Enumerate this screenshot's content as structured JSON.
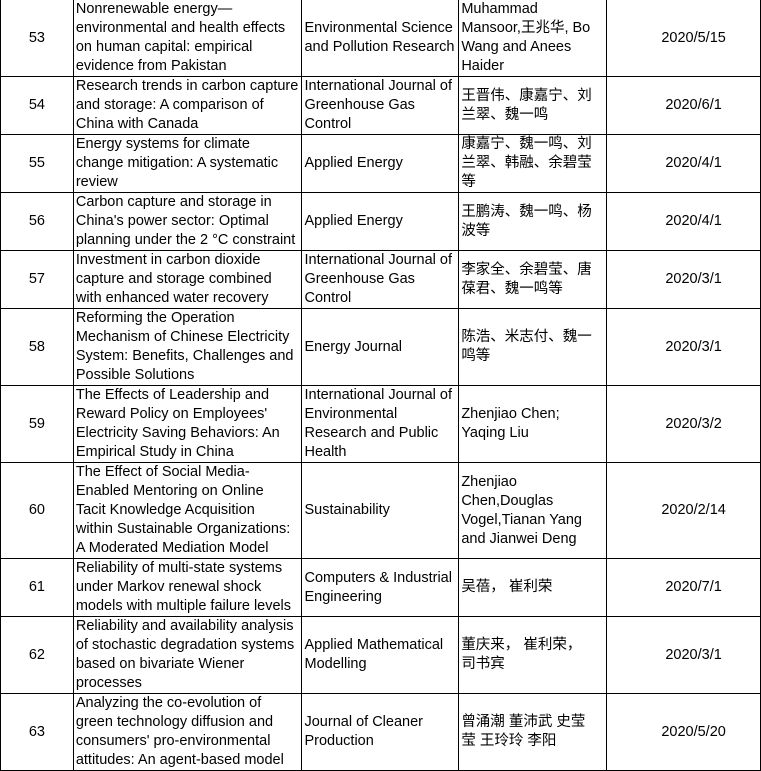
{
  "rows": [
    {
      "no": "53",
      "title": "Nonrenewable energy—\nenvironmental and health effects\non human capital: empirical\nevidence from Pakistan",
      "journal": "Environmental Science\nand Pollution Research",
      "authors": "Muhammad\nMansoor,王兆华, Bo\nWang and Anees\nHaider",
      "date": "2020/5/15"
    },
    {
      "no": "54",
      "title": "Research trends in carbon capture\nand storage: A comparison of\nChina with Canada",
      "journal": "International Journal of\nGreenhouse Gas\nControl",
      "authors": "王晋伟、康嘉宁、刘\n兰翠、魏一鸣",
      "date": "2020/6/1"
    },
    {
      "no": "55",
      "title": "Energy systems for climate\nchange mitigation: A systematic\nreview",
      "journal": "Applied Energy",
      "authors": "康嘉宁、魏一鸣、刘\n兰翠、韩融、余碧莹\n等",
      "date": "2020/4/1"
    },
    {
      "no": "56",
      "title": "Carbon capture and storage in\nChina's power sector: Optimal\nplanning under the 2 °C constraint",
      "journal": "Applied Energy",
      "authors": "王鹏涛、魏一鸣、杨\n波等",
      "date": "2020/4/1"
    },
    {
      "no": "57",
      "title": "Investment in carbon dioxide\ncapture and storage combined\nwith enhanced water recovery",
      "journal": "International Journal of\nGreenhouse Gas\nControl",
      "authors": "李家全、余碧莹、唐\n葆君、魏一鸣等",
      "date": "2020/3/1"
    },
    {
      "no": "58",
      "title": "Reforming the Operation\nMechanism of Chinese Electricity\nSystem: Benefits, Challenges and\nPossible Solutions",
      "journal": "Energy Journal",
      "authors": "陈浩、米志付、魏一\n鸣等",
      "date": "2020/3/1"
    },
    {
      "no": "59",
      "title": "The Effects of Leadership and\nReward Policy on Employees'\nElectricity Saving Behaviors: An\nEmpirical Study in China",
      "journal": "International Journal of\nEnvironmental\nResearch and Public\nHealth",
      "authors": "Zhenjiao Chen;\nYaqing Liu",
      "date": "2020/3/2"
    },
    {
      "no": "60",
      "title": "The Effect of Social Media-\nEnabled Mentoring on Online\nTacit Knowledge Acquisition\nwithin Sustainable Organizations:\nA Moderated Mediation Model",
      "journal": "Sustainability",
      "authors": "Zhenjiao\nChen,Douglas\nVogel,Tianan Yang\nand Jianwei Deng",
      "date": "2020/2/14"
    },
    {
      "no": "61",
      "title": "Reliability of multi-state systems\nunder Markov renewal shock\nmodels with multiple failure levels",
      "journal": "Computers & Industrial\nEngineering",
      "authors": "吴蓓，  崔利荣",
      "date": "2020/7/1"
    },
    {
      "no": "62",
      "title": "Reliability and availability analysis\nof stochastic degradation systems\nbased on bivariate Wiener\nprocesses",
      "journal": "Applied Mathematical\nModelling",
      "authors": "董庆来，  崔利荣，\n司书宾",
      "date": "2020/3/1"
    },
    {
      "no": "63",
      "title": "Analyzing the co-evolution of\ngreen technology diffusion and\nconsumers' pro-environmental\nattitudes: An agent-based model",
      "journal": "Journal of Cleaner\nProduction",
      "authors": "曾涌潮 董沛武 史莹\n莹 王玲玲 李阳",
      "date": "2020/5/20"
    }
  ]
}
